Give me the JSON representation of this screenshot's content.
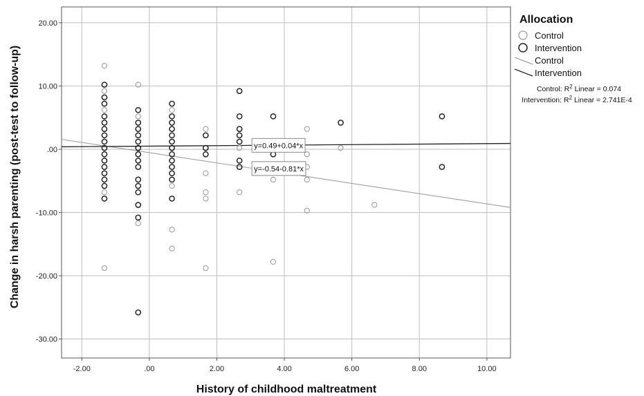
{
  "chart_data": {
    "type": "scatter",
    "xlabel": "History of childhood maltreatment",
    "ylabel": "Change in harsh parenting (post-test to follow-up)",
    "xlim": [
      -2.6,
      10.7
    ],
    "ylim": [
      -33.0,
      22.5
    ],
    "x_ticks": [
      -2,
      0,
      2,
      4,
      6,
      8,
      10
    ],
    "x_tick_labels": [
      "-2.00",
      ".00",
      "2.00",
      "4.00",
      "6.00",
      "8.00",
      "10.00"
    ],
    "y_ticks": [
      20,
      10,
      0,
      -10,
      -20,
      -30
    ],
    "y_tick_labels": [
      "20.00",
      "10.00",
      ".00",
      "-10.00",
      "-20.00",
      "-30.00"
    ],
    "grid": true,
    "legend_title": "Allocation",
    "legend_position": "right",
    "legend_entries": [
      {
        "label": "Control",
        "kind": "marker",
        "color": "#9e9e9e"
      },
      {
        "label": "Intervention",
        "kind": "marker",
        "color": "#222222"
      },
      {
        "label": "Control",
        "kind": "line",
        "color": "#9e9e9e"
      },
      {
        "label": "Intervention",
        "kind": "line",
        "color": "#222222"
      }
    ],
    "r2_notes": [
      {
        "prefix": "Control: R",
        "sup": "2",
        "suffix": " Linear = 0.074"
      },
      {
        "prefix": "Intervention: R",
        "sup": "2",
        "suffix": " Linear = 2.741E-4"
      }
    ],
    "series": [
      {
        "name": "Control",
        "color": "#9e9e9e",
        "points": [
          [
            -1.33,
            13.2
          ],
          [
            -1.33,
            9.2
          ],
          [
            -1.33,
            8.2
          ],
          [
            -1.33,
            6.2
          ],
          [
            -1.33,
            5.2
          ],
          [
            -1.33,
            4.2
          ],
          [
            -1.33,
            2.2
          ],
          [
            -1.33,
            1.2
          ],
          [
            -1.33,
            0.2
          ],
          [
            -1.33,
            -0.8
          ],
          [
            -1.33,
            -1.8
          ],
          [
            -1.33,
            -3.8
          ],
          [
            -1.33,
            -5.8
          ],
          [
            -1.33,
            -6.8
          ],
          [
            -1.33,
            -7.8
          ],
          [
            -1.33,
            -18.8
          ],
          [
            -0.33,
            10.2
          ],
          [
            -0.33,
            5.2
          ],
          [
            -0.33,
            3.2
          ],
          [
            -0.33,
            2.2
          ],
          [
            -0.33,
            0.2
          ],
          [
            -0.33,
            -0.8
          ],
          [
            -0.33,
            -2.8
          ],
          [
            -0.33,
            -4.8
          ],
          [
            -0.33,
            -5.8
          ],
          [
            -0.33,
            -11.7
          ],
          [
            0.67,
            6.2
          ],
          [
            0.67,
            5.2
          ],
          [
            0.67,
            3.2
          ],
          [
            0.67,
            1.2
          ],
          [
            0.67,
            0.2
          ],
          [
            0.67,
            -1.8
          ],
          [
            0.67,
            -3.8
          ],
          [
            0.67,
            -5.8
          ],
          [
            0.67,
            -12.7
          ],
          [
            0.67,
            -15.7
          ],
          [
            1.67,
            3.2
          ],
          [
            1.67,
            0.2
          ],
          [
            1.67,
            -3.8
          ],
          [
            1.67,
            -6.8
          ],
          [
            1.67,
            -7.8
          ],
          [
            1.67,
            -18.8
          ],
          [
            2.67,
            2.2
          ],
          [
            2.67,
            0.2
          ],
          [
            2.67,
            -2.8
          ],
          [
            2.67,
            -6.8
          ],
          [
            3.67,
            -0.8
          ],
          [
            3.67,
            -4.8
          ],
          [
            3.67,
            -17.8
          ],
          [
            4.67,
            3.2
          ],
          [
            4.67,
            -0.8
          ],
          [
            4.67,
            -2.8
          ],
          [
            4.67,
            -4.8
          ],
          [
            4.67,
            -9.7
          ],
          [
            5.67,
            0.2
          ],
          [
            6.67,
            -8.8
          ]
        ],
        "fit": {
          "intercept": -0.54,
          "slope": -0.81,
          "label": "y=-0.54-0.81*x",
          "label_anchor_x": 3.1
        }
      },
      {
        "name": "Intervention",
        "color": "#222222",
        "points": [
          [
            -1.33,
            10.2
          ],
          [
            -1.33,
            8.2
          ],
          [
            -1.33,
            7.2
          ],
          [
            -1.33,
            5.2
          ],
          [
            -1.33,
            4.2
          ],
          [
            -1.33,
            3.2
          ],
          [
            -1.33,
            2.2
          ],
          [
            -1.33,
            1.2
          ],
          [
            -1.33,
            0.2
          ],
          [
            -1.33,
            -0.8
          ],
          [
            -1.33,
            -1.8
          ],
          [
            -1.33,
            -2.8
          ],
          [
            -1.33,
            -3.8
          ],
          [
            -1.33,
            -4.8
          ],
          [
            -1.33,
            -5.8
          ],
          [
            -1.33,
            -7.8
          ],
          [
            -0.33,
            6.2
          ],
          [
            -0.33,
            4.2
          ],
          [
            -0.33,
            3.2
          ],
          [
            -0.33,
            2.2
          ],
          [
            -0.33,
            1.2
          ],
          [
            -0.33,
            0.2
          ],
          [
            -0.33,
            -0.8
          ],
          [
            -0.33,
            -1.8
          ],
          [
            -0.33,
            -2.8
          ],
          [
            -0.33,
            -4.8
          ],
          [
            -0.33,
            -5.8
          ],
          [
            -0.33,
            -6.8
          ],
          [
            -0.33,
            -8.8
          ],
          [
            -0.33,
            -10.8
          ],
          [
            -0.33,
            -25.8
          ],
          [
            0.67,
            7.2
          ],
          [
            0.67,
            5.2
          ],
          [
            0.67,
            4.2
          ],
          [
            0.67,
            3.2
          ],
          [
            0.67,
            2.2
          ],
          [
            0.67,
            1.2
          ],
          [
            0.67,
            0.2
          ],
          [
            0.67,
            -0.8
          ],
          [
            0.67,
            -1.8
          ],
          [
            0.67,
            -2.8
          ],
          [
            0.67,
            -3.8
          ],
          [
            0.67,
            -4.8
          ],
          [
            0.67,
            -7.8
          ],
          [
            1.67,
            2.2
          ],
          [
            1.67,
            0.2
          ],
          [
            1.67,
            -0.8
          ],
          [
            2.67,
            9.2
          ],
          [
            2.67,
            5.2
          ],
          [
            2.67,
            3.2
          ],
          [
            2.67,
            2.2
          ],
          [
            2.67,
            1.2
          ],
          [
            2.67,
            -1.8
          ],
          [
            2.67,
            -2.8
          ],
          [
            3.67,
            5.2
          ],
          [
            3.67,
            -0.8
          ],
          [
            3.67,
            -2.8
          ],
          [
            5.67,
            4.2
          ],
          [
            8.67,
            5.2
          ],
          [
            8.67,
            -2.8
          ]
        ],
        "fit": {
          "intercept": 0.49,
          "slope": 0.04,
          "label": "y=0.49+0.04*x",
          "label_anchor_x": 3.1
        }
      }
    ]
  }
}
